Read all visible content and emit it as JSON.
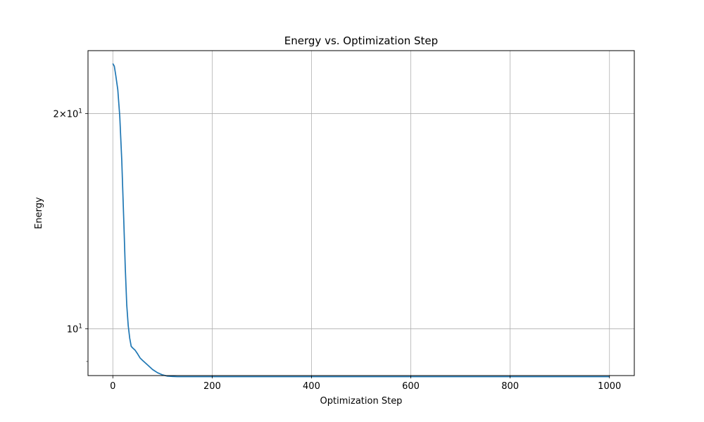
{
  "chart_data": {
    "type": "line",
    "title": "Energy vs. Optimization Step",
    "xlabel": "Optimization Step",
    "ylabel": "Energy",
    "xlim": [
      -50,
      1050
    ],
    "ylim": [
      8.6,
      24.5
    ],
    "yscale": "log",
    "grid": true,
    "x_ticks": [
      0,
      200,
      400,
      600,
      800,
      1000
    ],
    "x_tick_labels": [
      "0",
      "200",
      "400",
      "600",
      "800",
      "1000"
    ],
    "y_ticks_major": [
      10,
      20
    ],
    "y_tick_labels": [
      "10^1",
      "2×10^1"
    ],
    "y_ticks_minor": [
      9
    ],
    "series": [
      {
        "color": "#1f77b4",
        "x": [
          0,
          3,
          6,
          10,
          14,
          18,
          22,
          25,
          28,
          31,
          34,
          37,
          40,
          45,
          50,
          55,
          60,
          70,
          80,
          90,
          100,
          110,
          120,
          130,
          150,
          200,
          300,
          400,
          500,
          600,
          700,
          800,
          900,
          1000
        ],
        "y": [
          23.5,
          23.3,
          22.6,
          21.6,
          19.8,
          17.2,
          14.2,
          12.2,
          10.8,
          10.1,
          9.7,
          9.45,
          9.4,
          9.33,
          9.22,
          9.1,
          9.03,
          8.9,
          8.77,
          8.68,
          8.62,
          8.585,
          8.575,
          8.57,
          8.57,
          8.57,
          8.57,
          8.57,
          8.57,
          8.57,
          8.57,
          8.57,
          8.57,
          8.57
        ]
      }
    ]
  }
}
